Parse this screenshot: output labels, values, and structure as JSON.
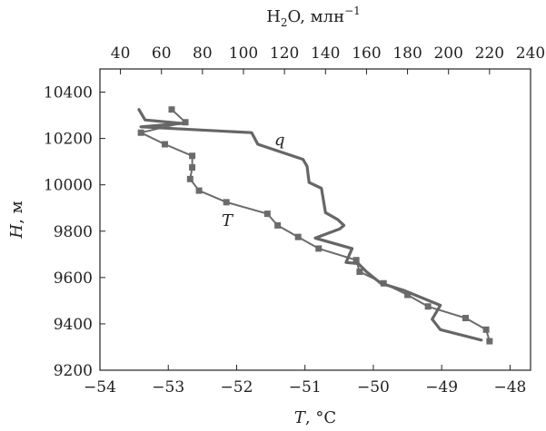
{
  "chart_data": {
    "type": "line",
    "axes": {
      "x_bottom": {
        "label_var": "T",
        "label_unit": ", °C",
        "range": [
          -54,
          -47.7
        ],
        "ticks": [
          -54,
          -53,
          -52,
          -51,
          -50,
          -49,
          -48
        ],
        "tick_labels": [
          "−54",
          "−53",
          "−52",
          "−51",
          "−50",
          "−49",
          "−48"
        ]
      },
      "x_top": {
        "label_main": "H",
        "label_sub": "2",
        "label_rest": "O, млн",
        "label_sup": "−1",
        "range": [
          30,
          240
        ],
        "ticks": [
          40,
          60,
          80,
          100,
          120,
          140,
          160,
          180,
          200,
          220,
          240
        ],
        "tick_labels": [
          "40",
          "60",
          "80",
          "100",
          "120",
          "140",
          "160",
          "180",
          "200",
          "220",
          "240"
        ]
      },
      "y_left": {
        "label_var": "H",
        "label_unit": ", м",
        "range": [
          9200,
          10500
        ],
        "ticks": [
          9200,
          9400,
          9600,
          9800,
          10000,
          10200,
          10400
        ],
        "tick_labels": [
          "9200",
          "9400",
          "9600",
          "9800",
          "10000",
          "10200",
          "10400"
        ]
      }
    },
    "series": [
      {
        "name": "T",
        "axis": "x_bottom",
        "markers": "square",
        "color": "#6b6b6b",
        "points": [
          [
            -52.95,
            10325
          ],
          [
            -52.75,
            10270
          ],
          [
            -53.4,
            10225
          ],
          [
            -53.05,
            10175
          ],
          [
            -52.65,
            10125
          ],
          [
            -52.65,
            10075
          ],
          [
            -52.68,
            10025
          ],
          [
            -52.55,
            9975
          ],
          [
            -52.15,
            9925
          ],
          [
            -51.55,
            9875
          ],
          [
            -51.4,
            9825
          ],
          [
            -51.1,
            9775
          ],
          [
            -50.8,
            9725
          ],
          [
            -50.25,
            9675
          ],
          [
            -50.2,
            9625
          ],
          [
            -49.85,
            9575
          ],
          [
            -49.5,
            9525
          ],
          [
            -49.2,
            9475
          ],
          [
            -48.65,
            9425
          ],
          [
            -48.35,
            9375
          ],
          [
            -48.3,
            9325
          ]
        ]
      },
      {
        "name": "q",
        "axis": "x_top",
        "markers": "none",
        "color": "#666666",
        "points": [
          [
            49,
            10325
          ],
          [
            52,
            10280
          ],
          [
            70,
            10265
          ],
          [
            50,
            10250
          ],
          [
            104,
            10225
          ],
          [
            107,
            10175
          ],
          [
            129,
            10110
          ],
          [
            131,
            10080
          ],
          [
            132,
            10010
          ],
          [
            138,
            9985
          ],
          [
            140,
            9880
          ],
          [
            146,
            9850
          ],
          [
            149,
            9825
          ],
          [
            147,
            9810
          ],
          [
            135,
            9770
          ],
          [
            153,
            9725
          ],
          [
            150,
            9665
          ],
          [
            156,
            9660
          ],
          [
            160,
            9625
          ],
          [
            167,
            9575
          ],
          [
            178,
            9545
          ],
          [
            196,
            9480
          ],
          [
            192,
            9420
          ],
          [
            196,
            9375
          ],
          [
            216,
            9330
          ]
        ]
      }
    ]
  }
}
